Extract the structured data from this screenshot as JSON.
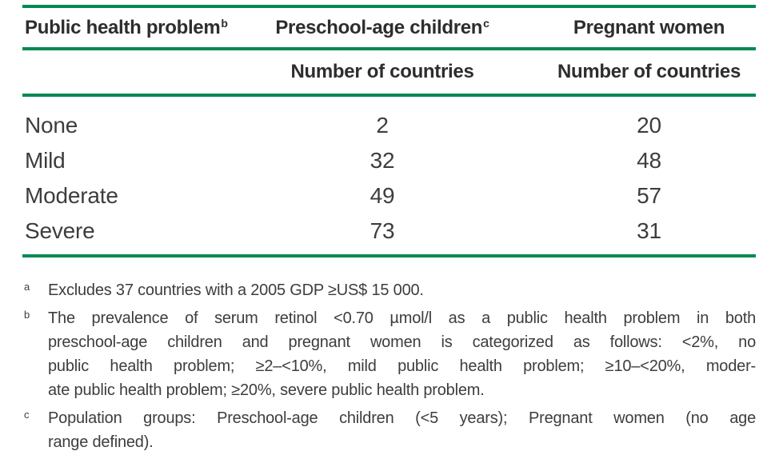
{
  "colors": {
    "rule_green": "#008a52",
    "text": "#3d3d3d",
    "header_text": "#2d2d2d",
    "background": "#ffffff"
  },
  "table": {
    "columns": [
      {
        "label": "Public health problem",
        "sup": "b",
        "subheader": ""
      },
      {
        "label": "Preschool-age children",
        "sup": "c",
        "subheader": "Number of countries"
      },
      {
        "label": "Pregnant women",
        "sup": "",
        "subheader": "Number of countries"
      }
    ],
    "rows": [
      {
        "problem": "None",
        "preschool": "2",
        "pregnant": "20"
      },
      {
        "problem": "Mild",
        "preschool": "32",
        "pregnant": "48"
      },
      {
        "problem": "Moderate",
        "preschool": "49",
        "pregnant": "57"
      },
      {
        "problem": "Severe",
        "preschool": "73",
        "pregnant": "31"
      }
    ]
  },
  "footnotes": [
    {
      "marker": "a",
      "lines": [
        "Excludes 37 countries with a 2005 GDP ≥US$ 15 000."
      ]
    },
    {
      "marker": "b",
      "lines": [
        "The prevalence of serum retinol <0.70 µmol/l as a public health problem in both",
        "preschool-age children and pregnant women is categorized as follows: <2%, no",
        "public health problem; ≥2–<10%, mild public health problem; ≥10–<20%, moder-",
        "ate public health problem; ≥20%, severe public health problem."
      ]
    },
    {
      "marker": "c",
      "lines": [
        "Population groups: Preschool-age children (<5 years); Pregnant women (no age",
        "range defined)."
      ]
    }
  ]
}
